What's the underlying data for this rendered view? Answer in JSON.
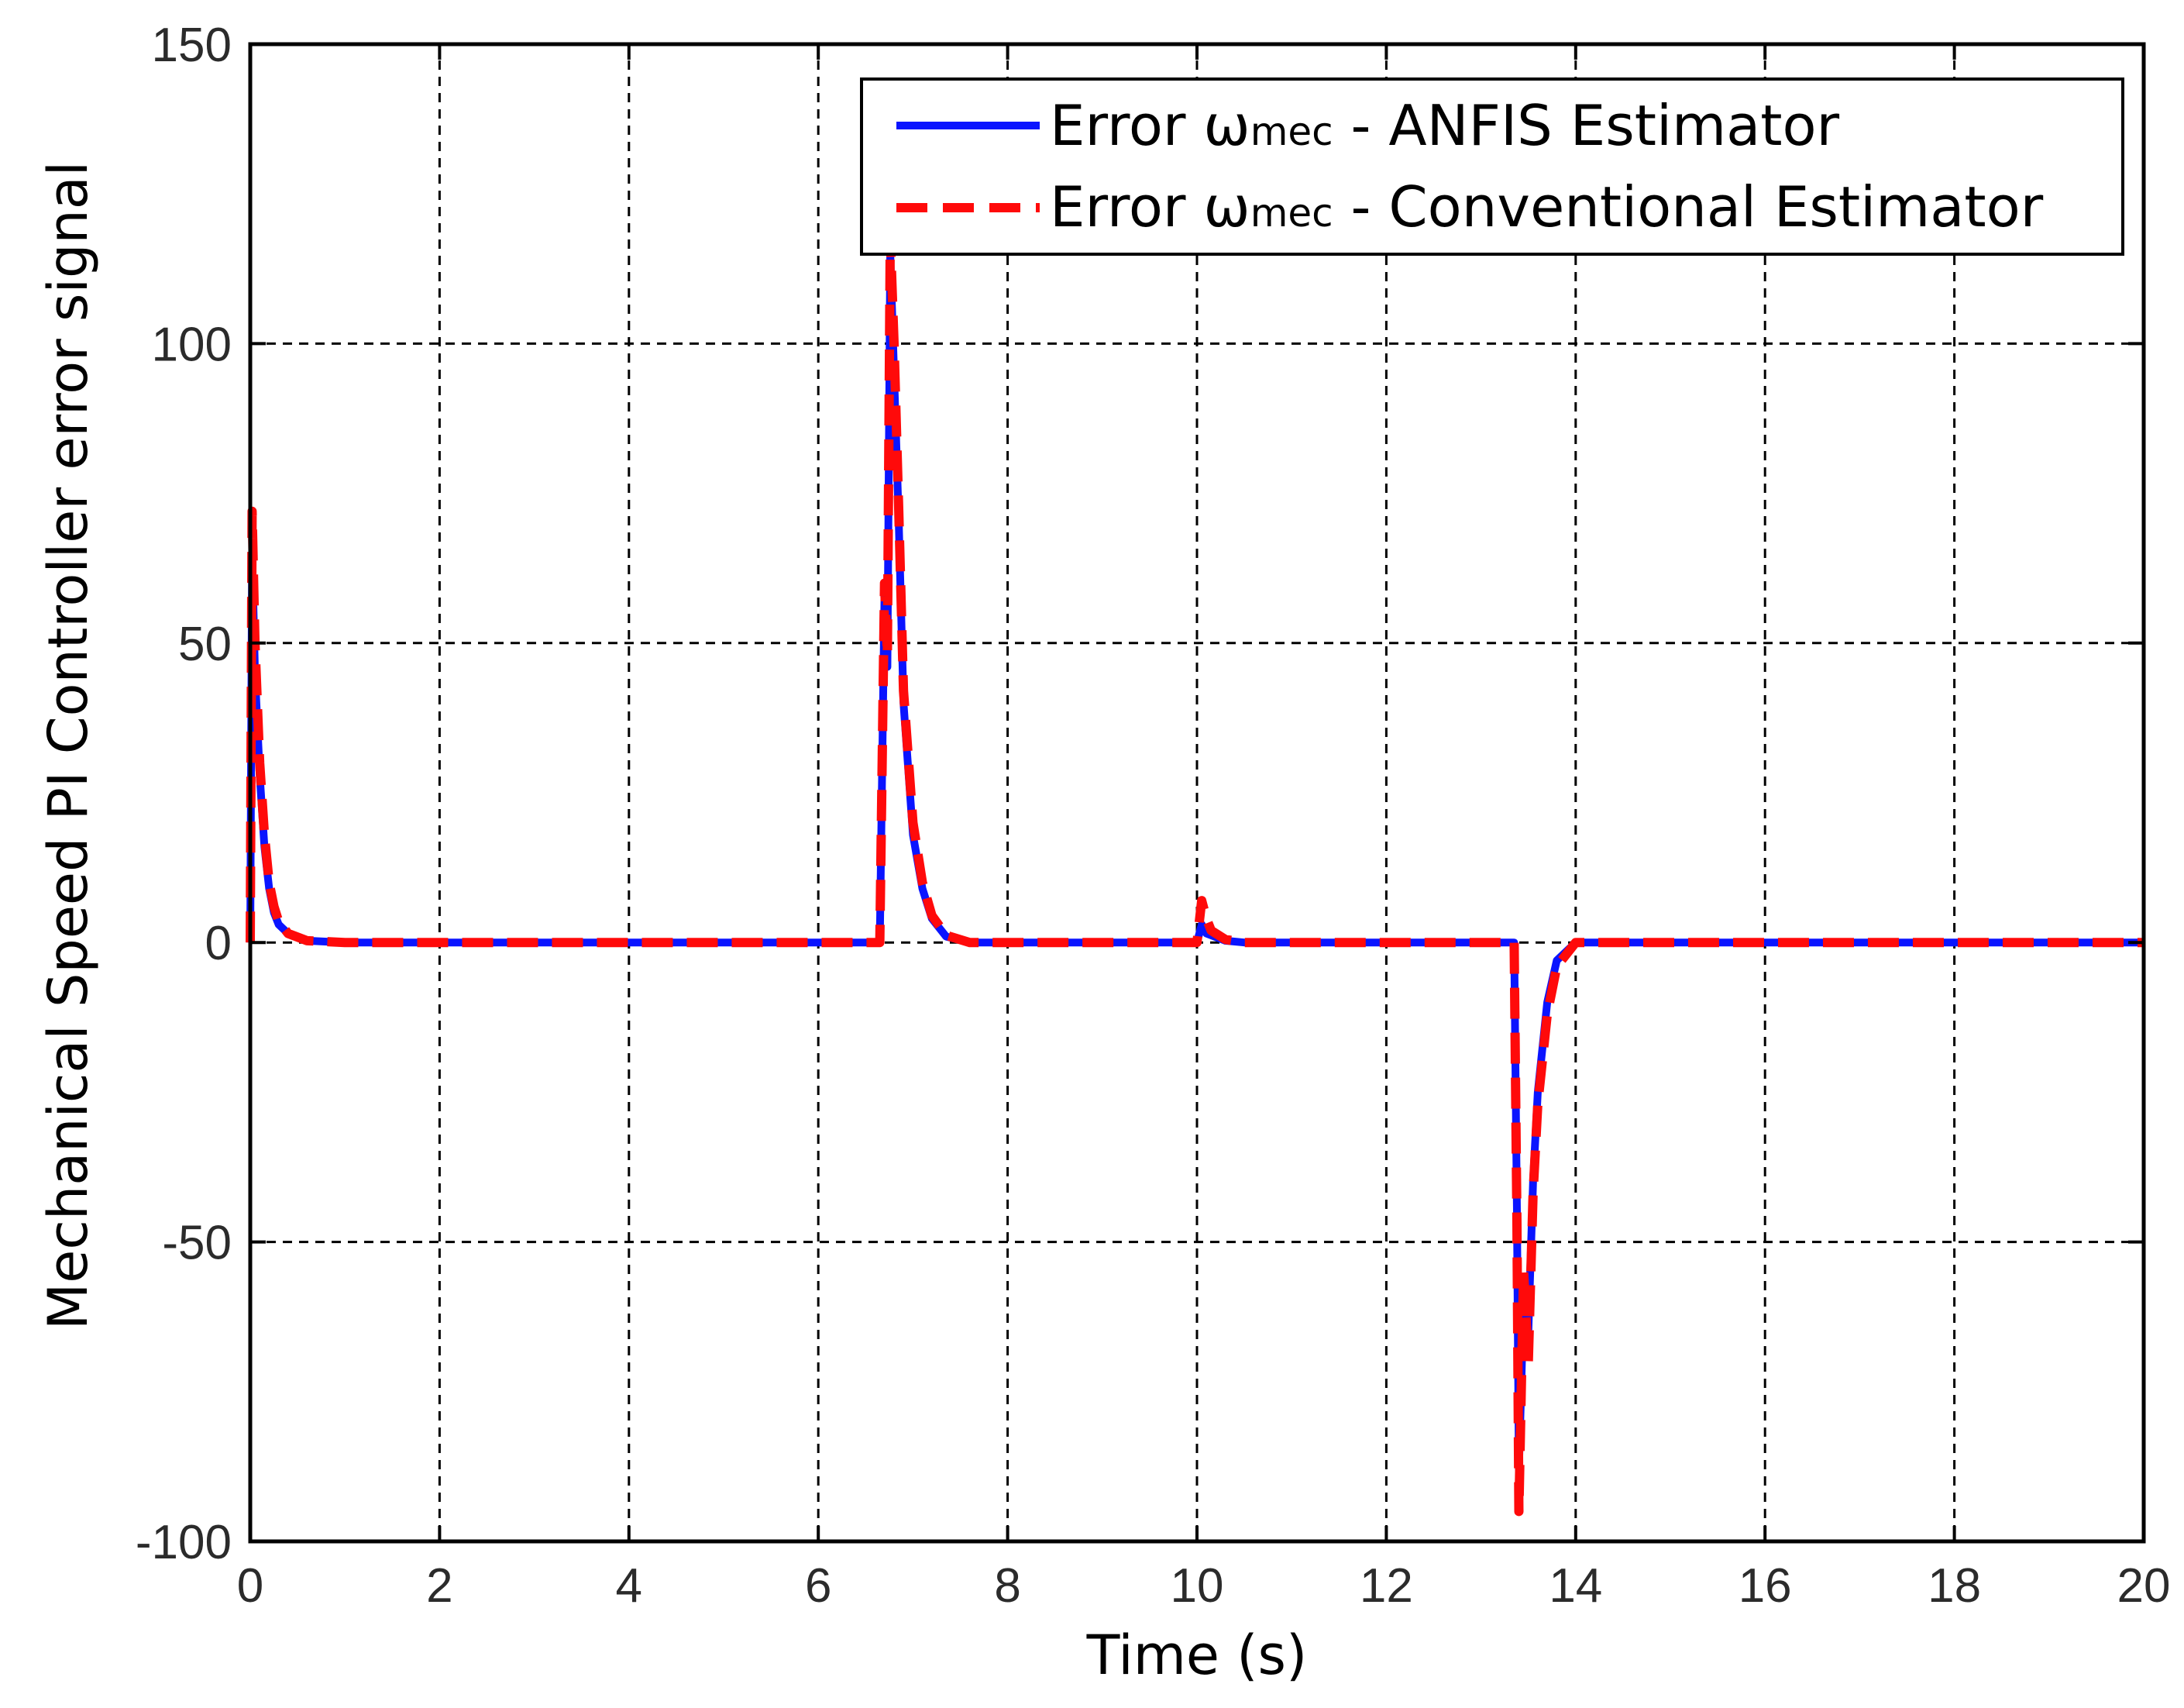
{
  "chart_data": {
    "type": "line",
    "xlabel": "Time (s)",
    "ylabel": "Mechanical Speed PI Controller error signal",
    "xlim": [
      0,
      20
    ],
    "ylim": [
      -100,
      150
    ],
    "xticks": [
      "0",
      "2",
      "4",
      "6",
      "8",
      "10",
      "12",
      "14",
      "16",
      "18",
      "20"
    ],
    "yticks": [
      "150",
      "100",
      "50",
      "0",
      "-50",
      "-100"
    ],
    "grid": true,
    "legend_position": "top-right",
    "series": [
      {
        "name": "Error ωmec - ANFIS Estimator",
        "legend_main": "Error ω",
        "legend_sub": "mec",
        "legend_tail": " - ANFIS Estimator",
        "color": "#0a14ff",
        "style": "solid",
        "points": [
          [
            0,
            0
          ],
          [
            0.02,
            65
          ],
          [
            0.05,
            45
          ],
          [
            0.1,
            28
          ],
          [
            0.15,
            16
          ],
          [
            0.2,
            9
          ],
          [
            0.25,
            5
          ],
          [
            0.3,
            3
          ],
          [
            0.4,
            1.5
          ],
          [
            0.6,
            0.3
          ],
          [
            1,
            0
          ],
          [
            6.65,
            0
          ],
          [
            6.7,
            58
          ],
          [
            6.73,
            46
          ],
          [
            6.76,
            115
          ],
          [
            6.8,
            95
          ],
          [
            6.85,
            70
          ],
          [
            6.9,
            40
          ],
          [
            7.0,
            18
          ],
          [
            7.1,
            9
          ],
          [
            7.2,
            4
          ],
          [
            7.35,
            1
          ],
          [
            7.6,
            0
          ],
          [
            10.0,
            0
          ],
          [
            10.05,
            3
          ],
          [
            10.1,
            1.5
          ],
          [
            10.3,
            0.3
          ],
          [
            10.5,
            0
          ],
          [
            13.35,
            0
          ],
          [
            13.38,
            -45
          ],
          [
            13.4,
            -88
          ],
          [
            13.45,
            -60
          ],
          [
            13.5,
            -65
          ],
          [
            13.55,
            -40
          ],
          [
            13.6,
            -25
          ],
          [
            13.7,
            -10
          ],
          [
            13.8,
            -3
          ],
          [
            14.0,
            0
          ],
          [
            20,
            0
          ]
        ]
      },
      {
        "name": "Error ωmec - Conventional Estimator",
        "legend_main": "Error ω",
        "legend_sub": "mec",
        "legend_tail": " - Conventional Estimator",
        "color": "#ff0a0a",
        "style": "dashed",
        "points": [
          [
            0,
            0
          ],
          [
            0.02,
            72
          ],
          [
            0.05,
            50
          ],
          [
            0.1,
            30
          ],
          [
            0.15,
            18
          ],
          [
            0.2,
            10
          ],
          [
            0.25,
            6
          ],
          [
            0.3,
            3.5
          ],
          [
            0.4,
            1.5
          ],
          [
            0.6,
            0.3
          ],
          [
            1,
            0
          ],
          [
            6.65,
            0
          ],
          [
            6.7,
            60
          ],
          [
            6.73,
            48
          ],
          [
            6.76,
            118
          ],
          [
            6.8,
            100
          ],
          [
            6.85,
            72
          ],
          [
            6.9,
            42
          ],
          [
            7.0,
            20
          ],
          [
            7.1,
            10
          ],
          [
            7.2,
            4.5
          ],
          [
            7.35,
            1.2
          ],
          [
            7.6,
            0
          ],
          [
            10.0,
            0
          ],
          [
            10.05,
            7
          ],
          [
            10.1,
            4
          ],
          [
            10.15,
            2
          ],
          [
            10.3,
            0.5
          ],
          [
            10.5,
            0
          ],
          [
            13.35,
            0
          ],
          [
            13.38,
            -47
          ],
          [
            13.4,
            -95
          ],
          [
            13.45,
            -55
          ],
          [
            13.5,
            -70
          ],
          [
            13.55,
            -42
          ],
          [
            13.6,
            -27
          ],
          [
            13.7,
            -12
          ],
          [
            13.8,
            -4
          ],
          [
            14.0,
            0
          ],
          [
            20,
            0
          ]
        ]
      }
    ]
  }
}
